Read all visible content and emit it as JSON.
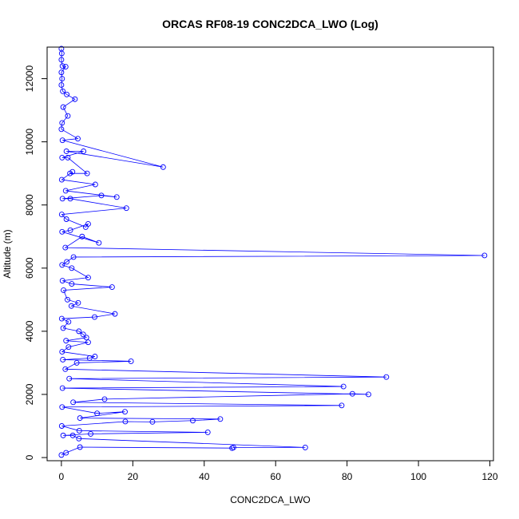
{
  "chart_data": {
    "type": "scatter",
    "title": "ORCAS RF08-19 CONC2DCA_LWO (Log)",
    "xlabel": "CONC2DCA_LWO",
    "ylabel": "Altitude (m)",
    "xlim": [
      -4,
      121
    ],
    "ylim": [
      -100,
      13000
    ],
    "xticks": [
      0,
      20,
      40,
      60,
      80,
      100,
      120
    ],
    "yticks": [
      0,
      2000,
      4000,
      6000,
      8000,
      10000,
      12000
    ],
    "grid": false,
    "line_color": "#0000ff",
    "marker": "open-circle",
    "series": [
      {
        "points": [
          [
            0,
            12950
          ],
          [
            0.1,
            12800
          ],
          [
            0,
            12600
          ],
          [
            0.3,
            12400
          ],
          [
            1.2,
            12380
          ],
          [
            0,
            12200
          ],
          [
            0.2,
            12000
          ],
          [
            0,
            11800
          ],
          [
            0.4,
            11600
          ],
          [
            1.5,
            11500
          ],
          [
            3.8,
            11350
          ],
          [
            0.5,
            11100
          ],
          [
            1.8,
            10820
          ],
          [
            0.2,
            10600
          ],
          [
            0,
            10400
          ],
          [
            4.6,
            10100
          ],
          [
            0.3,
            10050
          ],
          [
            28.5,
            9200
          ],
          [
            1.4,
            9700
          ],
          [
            6.2,
            9700
          ],
          [
            0.2,
            9500
          ],
          [
            1.8,
            9500
          ],
          [
            7.2,
            9000
          ],
          [
            2.4,
            9000
          ],
          [
            3.1,
            9050
          ],
          [
            0.1,
            8800
          ],
          [
            9.5,
            8650
          ],
          [
            1.2,
            8450
          ],
          [
            15.5,
            8250
          ],
          [
            11.2,
            8300
          ],
          [
            0.3,
            8200
          ],
          [
            2.5,
            8200
          ],
          [
            18.2,
            7900
          ],
          [
            0.1,
            7700
          ],
          [
            1.4,
            7550
          ],
          [
            6.8,
            7300
          ],
          [
            7.5,
            7400
          ],
          [
            2.5,
            7200
          ],
          [
            0.2,
            7150
          ],
          [
            10.5,
            6800
          ],
          [
            5.8,
            7000
          ],
          [
            1.1,
            6650
          ],
          [
            118.5,
            6400
          ],
          [
            3.4,
            6350
          ],
          [
            1.5,
            6200
          ],
          [
            0.2,
            6100
          ],
          [
            2.9,
            6000
          ],
          [
            7.5,
            5700
          ],
          [
            0.3,
            5600
          ],
          [
            2.9,
            5500
          ],
          [
            14.2,
            5400
          ],
          [
            0.6,
            5300
          ],
          [
            1.7,
            5000
          ],
          [
            4.7,
            4900
          ],
          [
            2.8,
            4800
          ],
          [
            15.0,
            4550
          ],
          [
            9.3,
            4450
          ],
          [
            0.1,
            4400
          ],
          [
            2.0,
            4300
          ],
          [
            0.5,
            4100
          ],
          [
            4.9,
            4000
          ],
          [
            6.1,
            3900
          ],
          [
            7.0,
            3800
          ],
          [
            1.3,
            3700
          ],
          [
            7.5,
            3650
          ],
          [
            2.0,
            3500
          ],
          [
            0.2,
            3350
          ],
          [
            9.4,
            3200
          ],
          [
            7.9,
            3150
          ],
          [
            0.4,
            3100
          ],
          [
            19.5,
            3050
          ],
          [
            4.3,
            3000
          ],
          [
            1.1,
            2800
          ],
          [
            91.0,
            2550
          ],
          [
            2.2,
            2500
          ],
          [
            79.0,
            2250
          ],
          [
            0.3,
            2200
          ],
          [
            86.0,
            2000
          ],
          [
            81.5,
            2020
          ],
          [
            12.1,
            1850
          ],
          [
            3.3,
            1750
          ],
          [
            78.5,
            1650
          ],
          [
            0.2,
            1600
          ],
          [
            10.0,
            1400
          ],
          [
            17.8,
            1450
          ],
          [
            5.2,
            1250
          ],
          [
            44.5,
            1220
          ],
          [
            36.8,
            1170
          ],
          [
            25.5,
            1130
          ],
          [
            17.9,
            1140
          ],
          [
            0.1,
            1000
          ],
          [
            5.0,
            850
          ],
          [
            41.0,
            800
          ],
          [
            8.2,
            750
          ],
          [
            0.5,
            700
          ],
          [
            3.2,
            700
          ],
          [
            4.9,
            600
          ],
          [
            68.3,
            320
          ],
          [
            48.2,
            320
          ],
          [
            47.8,
            300
          ],
          [
            5.2,
            330
          ],
          [
            1.3,
            150
          ],
          [
            0,
            80
          ]
        ]
      }
    ]
  }
}
